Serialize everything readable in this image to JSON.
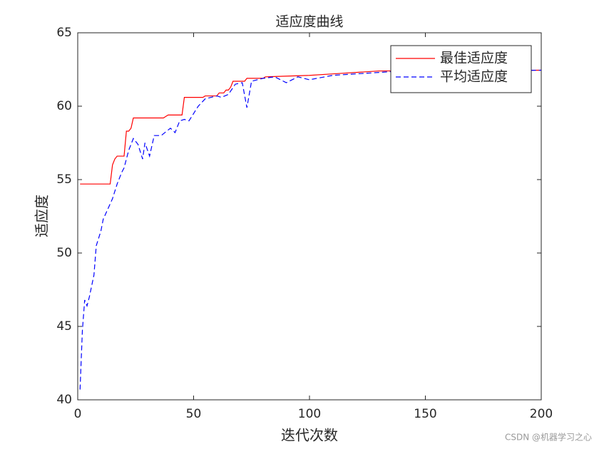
{
  "chart_data": {
    "type": "line",
    "title": "适应度曲线",
    "xlabel": "迭代次数",
    "ylabel": "适应度",
    "xlim": [
      0,
      200
    ],
    "ylim": [
      40,
      65
    ],
    "xticks": [
      0,
      50,
      100,
      150,
      200
    ],
    "yticks": [
      40,
      45,
      50,
      55,
      60,
      65
    ],
    "legend": "upper right",
    "series": [
      {
        "name": "最佳适应度",
        "color": "#ff0000",
        "dash": "solid",
        "x": [
          1,
          14,
          15,
          16,
          17,
          20,
          21,
          22,
          23,
          24,
          37,
          38,
          39,
          45,
          46,
          54,
          55,
          60,
          61,
          63,
          64,
          65,
          66,
          67,
          72,
          73,
          80,
          81,
          100,
          110,
          130,
          200
        ],
        "values": [
          54.7,
          54.7,
          56.0,
          56.4,
          56.6,
          56.6,
          58.3,
          58.3,
          58.5,
          59.2,
          59.2,
          59.3,
          59.4,
          59.4,
          60.6,
          60.6,
          60.7,
          60.7,
          60.9,
          60.9,
          61.1,
          61.1,
          61.3,
          61.7,
          61.7,
          61.9,
          61.9,
          62.0,
          62.1,
          62.2,
          62.4,
          62.45
        ]
      },
      {
        "name": "平均适应度",
        "color": "#0000ff",
        "dash": "dashed",
        "x": [
          1,
          2,
          3,
          4,
          5,
          7,
          8,
          10,
          11,
          13,
          15,
          17,
          19,
          20,
          22,
          24,
          26,
          28,
          29,
          31,
          33,
          36,
          40,
          42,
          44,
          46,
          48,
          52,
          55,
          60,
          62,
          65,
          68,
          71,
          73,
          75,
          80,
          85,
          90,
          95,
          100,
          110,
          120,
          140,
          200
        ],
        "values": [
          40.7,
          44.7,
          46.8,
          46.4,
          47.0,
          48.5,
          50.5,
          51.5,
          52.3,
          53.0,
          53.7,
          54.7,
          55.5,
          55.8,
          57.0,
          57.8,
          57.4,
          56.4,
          57.5,
          56.6,
          58.0,
          58.0,
          58.5,
          58.2,
          59.0,
          59.1,
          59.0,
          60.0,
          60.5,
          60.7,
          60.6,
          60.8,
          61.5,
          61.6,
          59.9,
          61.7,
          61.9,
          62.0,
          61.6,
          62.0,
          61.8,
          62.1,
          62.2,
          62.4,
          62.45
        ]
      }
    ]
  },
  "watermark": "CSDN @机器学习之心"
}
